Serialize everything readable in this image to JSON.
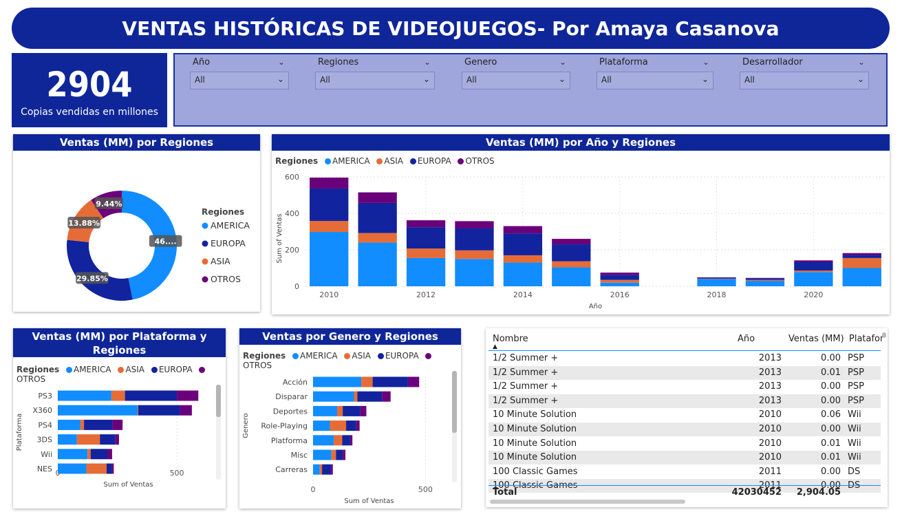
{
  "header": {
    "title": "VENTAS HISTÓRICAS DE VIDEOJUEGOS- Por Amaya Casanova"
  },
  "kpi": {
    "value": "2904",
    "label": "Copias vendidas en millones"
  },
  "filters": [
    {
      "label": "Año",
      "value": "All"
    },
    {
      "label": "Regiones",
      "value": "All"
    },
    {
      "label": "Genero",
      "value": "All"
    },
    {
      "label": "Plataforma",
      "value": "All"
    },
    {
      "label": "Desarrollador",
      "value": "All"
    }
  ],
  "colors": {
    "america": "#118dff",
    "asia": "#e66c37",
    "europa": "#12239e",
    "otros": "#6b007b",
    "brand": "#0f2699"
  },
  "chart_data": [
    {
      "type": "pie",
      "title": "Ventas (MM) por Regiones",
      "legend_title": "Regiones",
      "legend": [
        "AMERICA",
        "EUROPA",
        "ASIA",
        "OTROS"
      ],
      "slices": [
        {
          "name": "AMERICA",
          "value": 46.83,
          "label": "46...."
        },
        {
          "name": "EUROPA",
          "value": 29.85,
          "label": "29.85%"
        },
        {
          "name": "ASIA",
          "value": 13.88,
          "label": "13.88%"
        },
        {
          "name": "OTROS",
          "value": 9.44,
          "label": "9.44%"
        }
      ]
    },
    {
      "type": "bar",
      "title": "Ventas (MM) por Año y Regiones",
      "legend_title": "Regiones",
      "legend": [
        "AMERICA",
        "ASIA",
        "EUROPA",
        "OTROS"
      ],
      "xlabel": "Año",
      "ylabel": "Sum of Ventas",
      "ylim": [
        0,
        600
      ],
      "yticks": [
        "0",
        "200",
        "400",
        "600"
      ],
      "xticks": [
        "2010",
        "2012",
        "2014",
        "2016",
        "2018",
        "2020"
      ],
      "categories": [
        2010,
        2011,
        2012,
        2013,
        2014,
        2015,
        2016,
        2018,
        2019,
        2020,
        2021
      ],
      "series": [
        {
          "name": "AMERICA",
          "values": [
            298,
            240,
            155,
            150,
            130,
            104,
            20,
            40,
            30,
            78,
            100
          ]
        },
        {
          "name": "ASIA",
          "values": [
            60,
            52,
            52,
            47,
            40,
            33,
            15,
            2,
            5,
            8,
            55
          ]
        },
        {
          "name": "EUROPA",
          "values": [
            178,
            165,
            117,
            120,
            120,
            93,
            28,
            5,
            8,
            48,
            17
          ]
        },
        {
          "name": "OTROS",
          "values": [
            60,
            58,
            38,
            40,
            40,
            30,
            12,
            2,
            3,
            8,
            10
          ]
        }
      ]
    },
    {
      "type": "bar",
      "orientation": "horizontal",
      "title": "Ventas (MM) por Plataforma y Regiones",
      "legend_title": "Regiones",
      "legend": [
        "AMERICA",
        "ASIA",
        "EUROPA",
        "OTROS"
      ],
      "xlabel": "Sum of Ventas",
      "ylabel": "Plataforma",
      "xlim": [
        0,
        650
      ],
      "xticks": [
        "0",
        "500"
      ],
      "categories": [
        "PS3",
        "X360",
        "PS4",
        "3DS",
        "Wii",
        "NES"
      ],
      "series": [
        {
          "name": "AMERICA",
          "values": [
            225,
            335,
            95,
            80,
            125,
            120
          ]
        },
        {
          "name": "ASIA",
          "values": [
            57,
            3,
            15,
            97,
            13,
            85
          ]
        },
        {
          "name": "EUROPA",
          "values": [
            218,
            175,
            120,
            65,
            70,
            22
          ]
        },
        {
          "name": "OTROS",
          "values": [
            90,
            50,
            42,
            15,
            20,
            8
          ]
        }
      ]
    },
    {
      "type": "bar",
      "orientation": "horizontal",
      "title": "Ventas por Genero y Regiones",
      "legend_title": "Regiones",
      "legend": [
        "AMERICA",
        "ASIA",
        "EUROPA",
        "OTROS"
      ],
      "xlabel": "Sum of Ventas",
      "ylabel": "Genero",
      "xlim": [
        0,
        560
      ],
      "xticks": [
        "0",
        "500"
      ],
      "categories": [
        "Acción",
        "Disparar",
        "Deportes",
        "Role-Playing",
        "Platforma",
        "Misc",
        "Carreras"
      ],
      "series": [
        {
          "name": "AMERICA",
          "values": [
            215,
            182,
            107,
            75,
            92,
            82,
            30
          ]
        },
        {
          "name": "ASIA",
          "values": [
            50,
            15,
            25,
            72,
            38,
            20,
            10
          ]
        },
        {
          "name": "EUROPA",
          "values": [
            157,
            110,
            78,
            45,
            35,
            30,
            40
          ]
        },
        {
          "name": "OTROS",
          "values": [
            50,
            38,
            27,
            15,
            10,
            12,
            8
          ]
        }
      ]
    }
  ],
  "table": {
    "columns": [
      "Nombre",
      "Año",
      "Ventas (MM)",
      "Platafor"
    ],
    "rows": [
      [
        "1/2 Summer +",
        "2013",
        "0.00",
        "PSP"
      ],
      [
        "1/2 Summer +",
        "2013",
        "0.01",
        "PSP"
      ],
      [
        "1/2 Summer +",
        "2013",
        "0.00",
        "PSP"
      ],
      [
        "1/2 Summer +",
        "2013",
        "0.00",
        "PSP"
      ],
      [
        "10 Minute Solution",
        "2010",
        "0.06",
        "Wii"
      ],
      [
        "10 Minute Solution",
        "2010",
        "0.00",
        "Wii"
      ],
      [
        "10 Minute Solution",
        "2010",
        "0.01",
        "Wii"
      ],
      [
        "10 Minute Solution",
        "2010",
        "0.01",
        "Wii"
      ],
      [
        "100 Classic Games",
        "2011",
        "0.00",
        "DS"
      ],
      [
        "100 Classic Games",
        "2011",
        "0.00",
        "DS"
      ]
    ],
    "total": {
      "label": "Total",
      "year": "42030452",
      "ventas": "2,904.05"
    }
  }
}
